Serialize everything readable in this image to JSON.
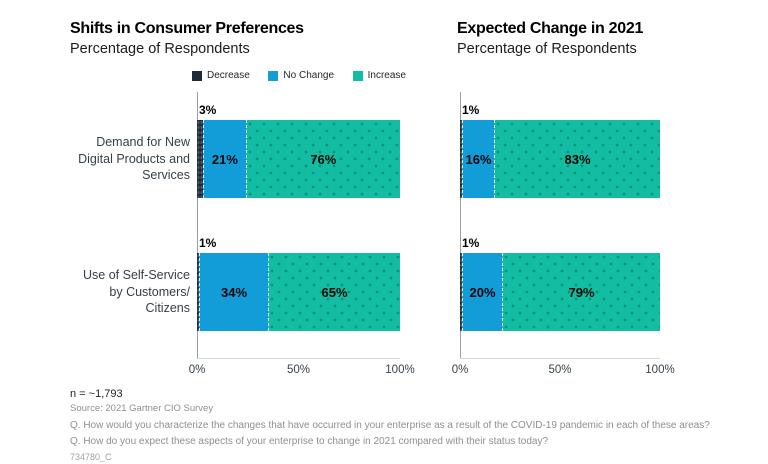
{
  "chart_data": [
    {
      "type": "bar",
      "orientation": "horizontal",
      "stacked": true,
      "title": "Shifts in Consumer Preferences",
      "subtitle": "Percentage of Respondents",
      "categories": [
        "Demand for New\nDigital Products and\nServices",
        "Use of Self-Service\nby Customers/\nCitizens"
      ],
      "series": [
        {
          "name": "Decrease",
          "color": "#1c2b36",
          "values": [
            3,
            1
          ]
        },
        {
          "name": "No Change",
          "color": "#129dd9",
          "values": [
            21,
            34
          ]
        },
        {
          "name": "Increase",
          "color": "#12bda2",
          "values": [
            76,
            65
          ]
        }
      ],
      "x_ticks": [
        "0%",
        "50%",
        "100%"
      ],
      "xlim": [
        0,
        100
      ],
      "legend_position": "top"
    },
    {
      "type": "bar",
      "orientation": "horizontal",
      "stacked": true,
      "title": "Expected Change in 2021",
      "subtitle": "Percentage of Respondents",
      "categories": [
        "Demand for New\nDigital Products and\nServices",
        "Use of Self-Service\nby Customers/\nCitizens"
      ],
      "series": [
        {
          "name": "Decrease",
          "color": "#1c2b36",
          "values": [
            1,
            1
          ]
        },
        {
          "name": "No Change",
          "color": "#129dd9",
          "values": [
            16,
            20
          ]
        },
        {
          "name": "Increase",
          "color": "#12bda2",
          "values": [
            83,
            79
          ]
        }
      ],
      "x_ticks": [
        "0%",
        "50%",
        "100%"
      ],
      "xlim": [
        0,
        100
      ],
      "legend_position": "none"
    }
  ],
  "legend": {
    "items": [
      "Decrease",
      "No Change",
      "Increase"
    ]
  },
  "footer": {
    "n": "n = ~1,793",
    "source": "Source: 2021 Gartner CIO Survey",
    "q1": "Q. How would you characterize the changes that have occurred in your enterprise as a result of the COVID-19 pandemic in each of these areas?",
    "q2": "Q. How do you expect these aspects of your enterprise to change in 2021 compared with their status today?",
    "doc_id": "734780_C"
  },
  "colors": {
    "decrease": "#1c2b36",
    "no_change": "#129dd9",
    "increase": "#12bda2",
    "axis": "#97a0a5",
    "baseline": "#d3d6d8"
  }
}
